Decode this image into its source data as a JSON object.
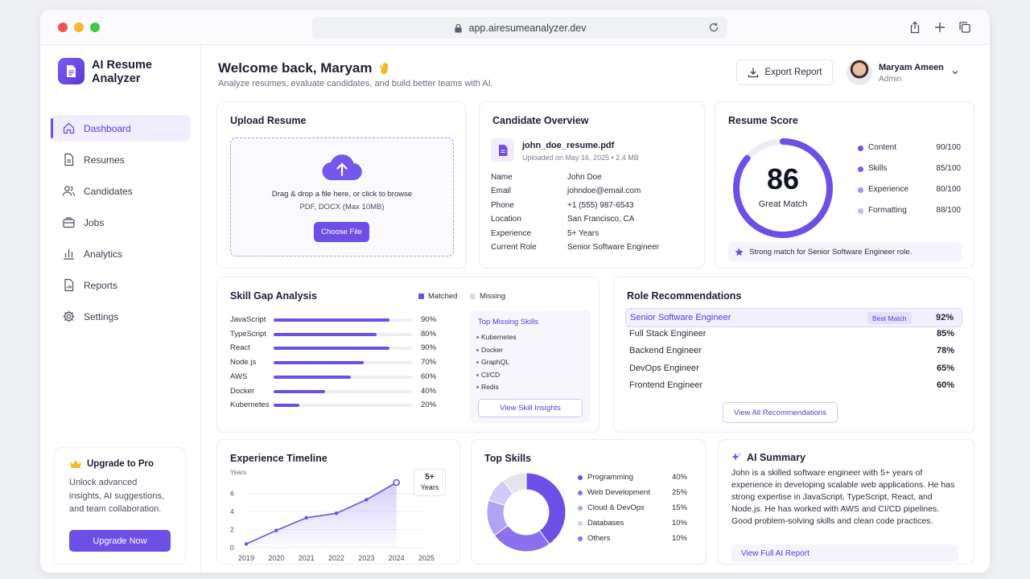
{
  "browser": {
    "url": "app.airesumeanalyzer.dev"
  },
  "app": {
    "name": "AI Resume Analyzer"
  },
  "sidebar": {
    "items": [
      {
        "label": "Dashboard",
        "icon": "home-icon",
        "active": true
      },
      {
        "label": "Resumes",
        "icon": "document-icon"
      },
      {
        "label": "Candidates",
        "icon": "users-icon"
      },
      {
        "label": "Jobs",
        "icon": "briefcase-icon"
      },
      {
        "label": "Analytics",
        "icon": "bar-chart-icon"
      },
      {
        "label": "Reports",
        "icon": "report-icon"
      },
      {
        "label": "Settings",
        "icon": "gear-icon"
      }
    ],
    "upgrade": {
      "title": "Upgrade to Pro",
      "description": "Unlock advanced insights, AI suggestions, and team collaboration.",
      "button": "Upgrade Now"
    }
  },
  "header": {
    "welcome": "Welcome back, Maryam",
    "subtitle": "Analyze resumes, evaluate candidates, and build better teams with AI.",
    "export_label": "Export Report",
    "user_name": "Maryam Ameen",
    "user_role": "Admin"
  },
  "upload": {
    "title": "Upload Resume",
    "drop_text": "Drag & drop a file here, or click to browse",
    "hint": "PDF, DOCX (Max 10MB)",
    "button": "Choose File"
  },
  "candidate": {
    "title": "Candidate Overview",
    "file_name": "john_doe_resume.pdf",
    "file_meta": "Uploaded on May 16, 2025 • 2.4 MB",
    "fields": [
      {
        "key": "Name",
        "value": "John Doe"
      },
      {
        "key": "Email",
        "value": "johndoe@email.com"
      },
      {
        "key": "Phone",
        "value": "+1 (555) 987-6543"
      },
      {
        "key": "Location",
        "value": "San Francisco, CA"
      },
      {
        "key": "Experience",
        "value": "5+ Years"
      },
      {
        "key": "Current Role",
        "value": "Senior Software Engineer"
      }
    ]
  },
  "score": {
    "title": "Resume Score",
    "value": "86",
    "fraction": 0.86,
    "label": "Great Match",
    "breakdown": [
      {
        "label": "Content",
        "value": "90/100",
        "color": "#6d4ee6"
      },
      {
        "label": "Skills",
        "value": "85/100",
        "color": "#7c5cf0"
      },
      {
        "label": "Experience",
        "value": "80/100",
        "color": "#a893f5"
      },
      {
        "label": "Formatting",
        "value": "88/100",
        "color": "#c4b6f9"
      }
    ],
    "note": "Strong match for Senior Software Engineer role."
  },
  "skill_gap": {
    "title": "Skill Gap Analysis",
    "legend_matched": "Matched",
    "legend_missing": "Missing",
    "skills": [
      {
        "name": "JavaScript",
        "value": 90,
        "label": "90%"
      },
      {
        "name": "TypeScript",
        "value": 80,
        "label": "80%"
      },
      {
        "name": "React",
        "value": 90,
        "label": "90%"
      },
      {
        "name": "Node.js",
        "value": 70,
        "label": "70%"
      },
      {
        "name": "AWS",
        "value": 60,
        "label": "60%"
      },
      {
        "name": "Docker",
        "value": 40,
        "label": "40%"
      },
      {
        "name": "Kubernetes",
        "value": 20,
        "label": "20%"
      }
    ],
    "missing_title": "Top Missing Skills",
    "missing": [
      "Kubernetes",
      "Docker",
      "GraphQL",
      "CI/CD",
      "Redis"
    ],
    "insights_button": "View Skill Insights"
  },
  "roles": {
    "title": "Role Recommendations",
    "best_badge": "Best Match",
    "items": [
      {
        "name": "Senior Software Engineer",
        "pct": "92%",
        "best": true
      },
      {
        "name": "Full Stack Engineer",
        "pct": "85%"
      },
      {
        "name": "Backend Engineer",
        "pct": "78%"
      },
      {
        "name": "DevOps Engineer",
        "pct": "65%"
      },
      {
        "name": "Frontend Engineer",
        "pct": "60%"
      }
    ],
    "view_all": "View All Recommendations"
  },
  "timeline": {
    "title": "Experience Timeline",
    "badge_value": "5+",
    "badge_unit": "Years",
    "chart_data": {
      "type": "area",
      "x": [
        "2019",
        "2020",
        "2021",
        "2022",
        "2023",
        "2024",
        "2025"
      ],
      "y_points": [
        {
          "x": 2019,
          "y": 0.4
        },
        {
          "x": 2020,
          "y": 1.9
        },
        {
          "x": 2021,
          "y": 3.3
        },
        {
          "x": 2022,
          "y": 3.8
        },
        {
          "x": 2023,
          "y": 5.3
        },
        {
          "x": 2024,
          "y": 7.2
        }
      ],
      "ylabel": "Years",
      "yticks": [
        "0",
        "2",
        "4",
        "6"
      ],
      "ylim": [
        0,
        8
      ]
    }
  },
  "top_skills": {
    "title": "Top Skills",
    "chart_data": {
      "type": "pie",
      "categories": [
        "Programming",
        "Web Development",
        "Cloud & DevOps",
        "Databases",
        "Others"
      ],
      "values": [
        40,
        25,
        15,
        10,
        10
      ],
      "labels": [
        "40%",
        "25%",
        "15%",
        "10%",
        "10%"
      ],
      "colors": [
        "#6d4ee6",
        "#8b6ff0",
        "#b2a2f6",
        "#d2c8fa",
        "#e4e5ea"
      ]
    }
  },
  "ai_summary": {
    "title": "AI Summary",
    "text": "John is a skilled software engineer with 5+ years of experience in developing scalable web applications. He has strong expertise in JavaScript, TypeScript, React, and Node.js. He has worked with AWS and CI/CD pipelines. Good problem-solving skills and clean code practices.",
    "button": "View Full AI Report"
  },
  "colors": {
    "accent": "#6d4ee6",
    "accent_light": "#f1edff"
  }
}
